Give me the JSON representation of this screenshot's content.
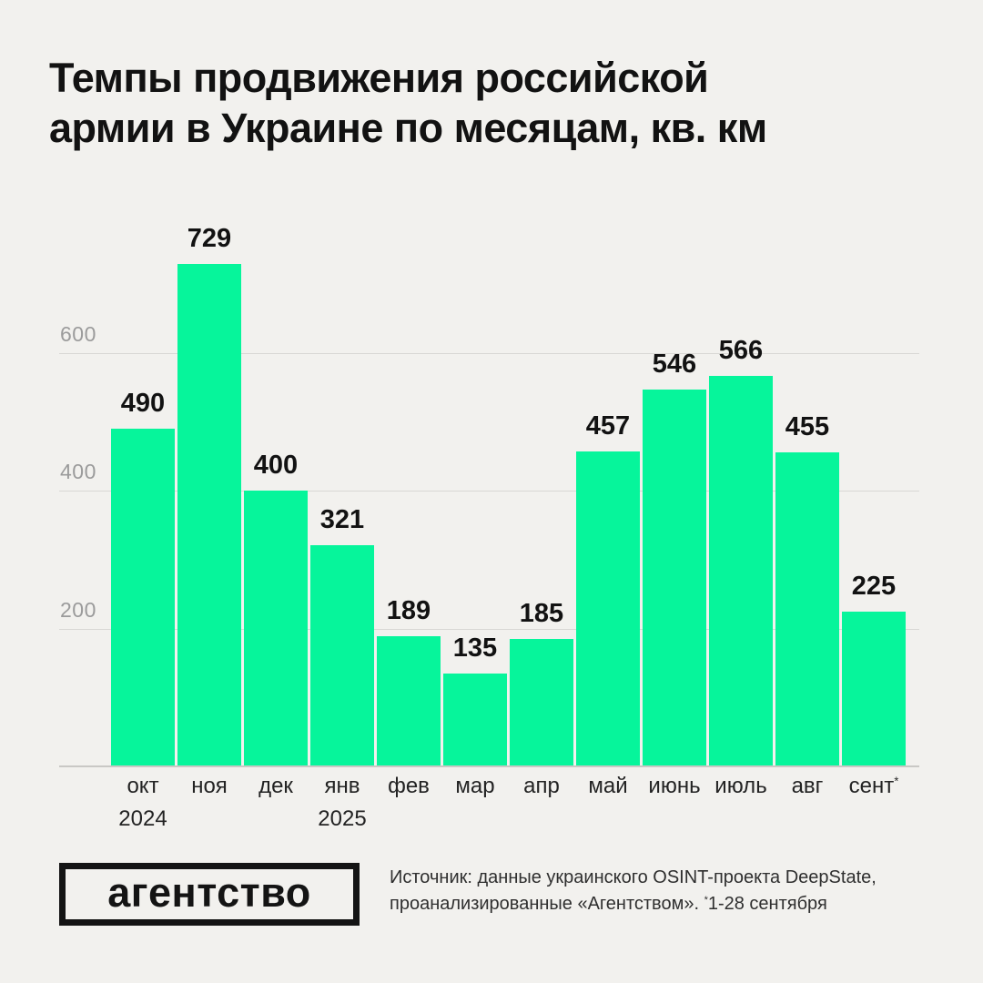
{
  "header": {
    "title": "Темпы продвижения российской армии в Украине по месяцам, кв. км",
    "title_lines": [
      "Темпы продвижения российской",
      "армии в Украине по месяцам, кв. км"
    ]
  },
  "chart_data": {
    "type": "bar",
    "title": "Темпы продвижения российской армии в Украине по месяцам, кв. км",
    "categories": [
      "окт",
      "ноя",
      "дек",
      "янв",
      "фев",
      "мар",
      "апр",
      "май",
      "июнь",
      "июль",
      "авг",
      "сент*"
    ],
    "values": [
      490,
      729,
      400,
      321,
      189,
      135,
      185,
      457,
      546,
      566,
      455,
      225
    ],
    "year_markers": [
      {
        "label": "2024",
        "index": 0
      },
      {
        "label": "2025",
        "index": 3
      }
    ],
    "xlabel": "",
    "ylabel": "",
    "yticks": [
      200,
      400,
      600
    ],
    "ylim": [
      0,
      760
    ],
    "grid": "horizontal",
    "legend": "none",
    "value_labels": true,
    "bar_color": "#06f59b"
  },
  "footer": {
    "logo_text": "агентство",
    "source_lines": [
      "Источник: данные украинского OSINT-проекта DeepState,",
      "проанализированные «Агентством». *1-28 сентября"
    ]
  },
  "colors": {
    "bar": "#06f59b",
    "background": "#f2f1ee",
    "title_text": "#121212",
    "grid_line": "#d8d7d4",
    "grid_label": "#9b9b9b",
    "axis_label": "#232323",
    "logo": "#141414",
    "source_text": "#2f2f2f"
  }
}
